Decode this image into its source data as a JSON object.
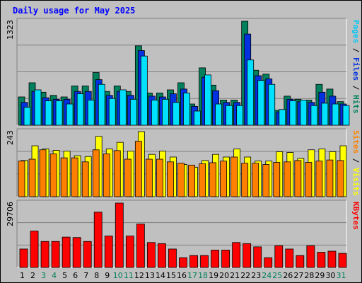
{
  "chart_data": {
    "title": "Daily usage for May 2025",
    "type": "bar",
    "categories": [
      "1",
      "2",
      "3",
      "4",
      "5",
      "6",
      "7",
      "8",
      "9",
      "10",
      "11",
      "12",
      "13",
      "14",
      "15",
      "16",
      "17",
      "18",
      "19",
      "20",
      "21",
      "22",
      "23",
      "24",
      "25",
      "26",
      "27",
      "28",
      "29",
      "30",
      "31"
    ],
    "weekend_days": [
      "3",
      "4",
      "10",
      "11",
      "17",
      "18",
      "24",
      "25",
      "31"
    ],
    "panels": [
      {
        "name": "pages-files-hits",
        "ymax_label": "1323",
        "ylim": [
          0,
          1323
        ],
        "right_label": [
          "Pages",
          " / ",
          "Files",
          " / ",
          "Hits"
        ],
        "right_label_colors": [
          "#00c8f8",
          "#000000",
          "#0030e0",
          "#000000",
          "#00805c"
        ],
        "series": [
          {
            "name": "Hits",
            "color": "#00805c",
            "values": [
              360,
              540,
              420,
              380,
              360,
              500,
              500,
              670,
              430,
              500,
              430,
              1010,
              410,
              410,
              450,
              540,
              270,
              730,
              510,
              320,
              320,
              1323,
              700,
              650,
              190,
              370,
              330,
              320,
              520,
              460,
              300
            ]
          },
          {
            "name": "Files",
            "color": "#0030e0",
            "values": [
              290,
              430,
              350,
              330,
              330,
              430,
              430,
              580,
              380,
              430,
              380,
              950,
              370,
              360,
              400,
              460,
              240,
              610,
              440,
              290,
              290,
              1160,
              630,
              590,
              170,
              330,
              300,
              290,
              420,
              370,
              270
            ]
          },
          {
            "name": "Pages",
            "color": "#00e0ff",
            "values": [
              230,
              450,
              310,
              310,
              270,
              400,
              320,
              520,
              340,
              450,
              330,
              880,
              320,
              330,
              290,
              410,
              180,
              640,
              270,
              250,
              250,
              830,
              570,
              520,
              200,
              310,
              320,
              250,
              280,
              270,
              250
            ]
          }
        ]
      },
      {
        "name": "sites-visits",
        "ymax_label": "243",
        "ylim": [
          0,
          243
        ],
        "right_label": [
          "Sites",
          " / ",
          "Visits"
        ],
        "right_label_colors": [
          "#ff8000",
          "#000000",
          "#ffff00"
        ],
        "series": [
          {
            "name": "Visits",
            "color": "#ffff00",
            "values": [
              135,
              190,
              178,
              173,
              170,
              153,
              150,
              225,
              178,
              203,
              170,
              243,
              158,
              170,
              148,
              120,
              110,
              135,
              158,
              148,
              178,
              148,
              133,
              133,
              168,
              165,
              143,
              175,
              178,
              168,
              190
            ]
          },
          {
            "name": "Sites",
            "color": "#ff8000",
            "values": [
              133,
              140,
              175,
              160,
              145,
              145,
              130,
              175,
              160,
              172,
              140,
              207,
              140,
              140,
              130,
              125,
              118,
              123,
              127,
              133,
              148,
              125,
              125,
              120,
              128,
              130,
              135,
              128,
              133,
              137,
              135
            ]
          }
        ]
      },
      {
        "name": "kbytes",
        "ymax_label": "29706",
        "ylim": [
          0,
          29706
        ],
        "right_label": [
          "KBytes"
        ],
        "right_label_colors": [
          "#ff0000"
        ],
        "series": [
          {
            "name": "KBytes",
            "color": "#ff0000",
            "values": [
              8500,
              16800,
              12000,
              12000,
              14000,
              13800,
              12000,
              25500,
              14500,
              29706,
              14500,
              20000,
              11500,
              11000,
              8500,
              4500,
              5500,
              5500,
              8000,
              8000,
              11500,
              11000,
              9500,
              4500,
              10000,
              8500,
              5500,
              10000,
              7000,
              7500,
              6500
            ]
          }
        ]
      }
    ]
  }
}
